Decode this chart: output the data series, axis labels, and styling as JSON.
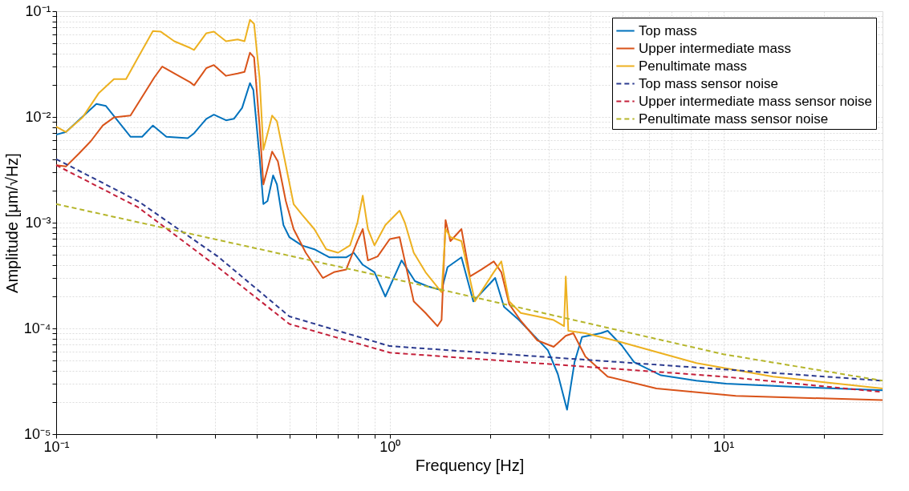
{
  "chart_data": {
    "type": "line",
    "xlabel": "Frequency [Hz]",
    "ylabel": "Amplitude [μm/√Hz]",
    "log": "xy",
    "grid": true,
    "legend": "top right",
    "xlim": [
      0.1,
      30
    ],
    "ylim": [
      1e-05,
      0.1
    ],
    "xticks": [
      {
        "value": 0.1,
        "label": "10⁻¹"
      },
      {
        "value": 0.2,
        "label": null
      },
      {
        "value": 0.3,
        "label": null
      },
      {
        "value": 0.4,
        "label": null
      },
      {
        "value": 0.5,
        "label": null
      },
      {
        "value": 0.6,
        "label": null
      },
      {
        "value": 0.7,
        "label": null
      },
      {
        "value": 0.8,
        "label": null
      },
      {
        "value": 0.9,
        "label": null
      },
      {
        "value": 1,
        "label": "10⁰"
      },
      {
        "value": 2,
        "label": null
      },
      {
        "value": 3,
        "label": null
      },
      {
        "value": 4,
        "label": null
      },
      {
        "value": 5,
        "label": null
      },
      {
        "value": 6,
        "label": null
      },
      {
        "value": 7,
        "label": null
      },
      {
        "value": 8,
        "label": null
      },
      {
        "value": 9,
        "label": null
      },
      {
        "value": 10,
        "label": "10¹"
      },
      {
        "value": 20,
        "label": null
      }
    ],
    "yticks": [
      {
        "value": 1e-05,
        "label": "10⁻⁵"
      },
      {
        "value": 2e-05,
        "label": null
      },
      {
        "value": 3e-05,
        "label": null
      },
      {
        "value": 4e-05,
        "label": null
      },
      {
        "value": 5e-05,
        "label": null
      },
      {
        "value": 6e-05,
        "label": null
      },
      {
        "value": 7e-05,
        "label": null
      },
      {
        "value": 8e-05,
        "label": null
      },
      {
        "value": 9e-05,
        "label": null
      },
      {
        "value": 0.0001,
        "label": "10⁻⁴"
      },
      {
        "value": 0.0002,
        "label": null
      },
      {
        "value": 0.0003,
        "label": null
      },
      {
        "value": 0.0004,
        "label": null
      },
      {
        "value": 0.0005,
        "label": null
      },
      {
        "value": 0.0006,
        "label": null
      },
      {
        "value": 0.0007,
        "label": null
      },
      {
        "value": 0.0008,
        "label": null
      },
      {
        "value": 0.0009,
        "label": null
      },
      {
        "value": 0.001,
        "label": "10⁻³"
      },
      {
        "value": 0.002,
        "label": null
      },
      {
        "value": 0.003,
        "label": null
      },
      {
        "value": 0.004,
        "label": null
      },
      {
        "value": 0.005,
        "label": null
      },
      {
        "value": 0.006,
        "label": null
      },
      {
        "value": 0.007,
        "label": null
      },
      {
        "value": 0.008,
        "label": null
      },
      {
        "value": 0.009,
        "label": null
      },
      {
        "value": 0.01,
        "label": "10⁻²"
      },
      {
        "value": 0.02,
        "label": null
      },
      {
        "value": 0.03,
        "label": null
      },
      {
        "value": 0.04,
        "label": null
      },
      {
        "value": 0.05,
        "label": null
      },
      {
        "value": 0.06,
        "label": null
      },
      {
        "value": 0.07,
        "label": null
      },
      {
        "value": 0.08,
        "label": null
      },
      {
        "value": 0.09,
        "label": null
      },
      {
        "value": 0.1,
        "label": "10⁻¹"
      }
    ],
    "series": [
      {
        "name": "Top mass",
        "color": "#0072bd",
        "line_style": "solid",
        "x": [
          0.1,
          0.107,
          0.132,
          0.141,
          0.167,
          0.181,
          0.195,
          0.214,
          0.248,
          0.259,
          0.282,
          0.297,
          0.323,
          0.341,
          0.361,
          0.381,
          0.39,
          0.407,
          0.418,
          0.43,
          0.447,
          0.459,
          0.48,
          0.5,
          0.545,
          0.594,
          0.66,
          0.74,
          0.78,
          0.83,
          0.9,
          0.97,
          1.085,
          1.19,
          1.3,
          1.43,
          1.49,
          1.64,
          1.78,
          2.07,
          2.2,
          2.44,
          2.73,
          2.98,
          3.19,
          3.4,
          3.58,
          3.77,
          4.29,
          4.5,
          4.96,
          5.4,
          6.5,
          8.3,
          10.2,
          16.4,
          30
        ],
        "values": [
          0.0068,
          0.0072,
          0.0133,
          0.0127,
          0.0065,
          0.0065,
          0.0083,
          0.0065,
          0.0063,
          0.007,
          0.0096,
          0.0105,
          0.0093,
          0.0096,
          0.0122,
          0.0209,
          0.018,
          0.0042,
          0.0015,
          0.0016,
          0.0028,
          0.0023,
          0.00095,
          0.00073,
          0.00061,
          0.00056,
          0.00047,
          0.00047,
          0.00052,
          0.0004,
          0.00034,
          0.0002,
          0.00044,
          0.00028,
          0.00025,
          0.00023,
          0.00038,
          0.00047,
          0.00018,
          0.0003,
          0.00016,
          0.00012,
          8.3e-05,
          6.2e-05,
          3.7e-05,
          1.7e-05,
          4.8e-05,
          8.3e-05,
          9e-05,
          9.5e-05,
          6.9e-05,
          4.8e-05,
          3.6e-05,
          3.2e-05,
          3e-05,
          2.8e-05,
          2.6e-05
        ]
      },
      {
        "name": "Upper intermediate mass",
        "color": "#d95319",
        "line_style": "solid",
        "x": [
          0.1,
          0.107,
          0.117,
          0.127,
          0.138,
          0.149,
          0.167,
          0.197,
          0.208,
          0.226,
          0.252,
          0.259,
          0.282,
          0.297,
          0.323,
          0.35,
          0.367,
          0.381,
          0.392,
          0.407,
          0.418,
          0.444,
          0.462,
          0.488,
          0.515,
          0.56,
          0.63,
          0.68,
          0.74,
          0.8,
          0.83,
          0.86,
          0.92,
          1.0,
          1.07,
          1.18,
          1.28,
          1.39,
          1.43,
          1.47,
          1.52,
          1.64,
          1.74,
          1.88,
          2.05,
          2.16,
          2.28,
          2.47,
          2.77,
          3.1,
          3.37,
          3.55,
          3.86,
          4.5,
          6.3,
          10.9,
          30
        ],
        "values": [
          0.0035,
          0.0034,
          0.0045,
          0.0059,
          0.0083,
          0.0099,
          0.0103,
          0.0237,
          0.03,
          0.0258,
          0.0213,
          0.0199,
          0.029,
          0.031,
          0.0245,
          0.0258,
          0.0267,
          0.0405,
          0.0366,
          0.0083,
          0.0023,
          0.0047,
          0.0038,
          0.0016,
          0.00087,
          0.00052,
          0.0003,
          0.00034,
          0.00036,
          0.00067,
          0.00087,
          0.00044,
          0.00048,
          0.0007,
          0.00073,
          0.00018,
          0.00014,
          0.000105,
          0.00012,
          0.00106,
          0.00067,
          0.00087,
          0.00031,
          0.00036,
          0.00043,
          0.00034,
          0.00017,
          0.000118,
          7.7e-05,
          6.7e-05,
          8.5e-05,
          9e-05,
          5.4e-05,
          3.5e-05,
          2.7e-05,
          2.3e-05,
          2.1e-05
        ]
      },
      {
        "name": "Penultimate mass",
        "color": "#edb120",
        "line_style": "solid",
        "x": [
          0.1,
          0.107,
          0.12,
          0.134,
          0.149,
          0.162,
          0.176,
          0.195,
          0.206,
          0.226,
          0.252,
          0.259,
          0.282,
          0.297,
          0.323,
          0.35,
          0.367,
          0.381,
          0.392,
          0.407,
          0.418,
          0.444,
          0.459,
          0.488,
          0.515,
          0.545,
          0.594,
          0.645,
          0.7,
          0.76,
          0.8,
          0.83,
          0.86,
          0.9,
          0.97,
          1.07,
          1.11,
          1.18,
          1.28,
          1.43,
          1.47,
          1.52,
          1.64,
          1.8,
          2.05,
          2.16,
          2.28,
          2.47,
          2.77,
          3.1,
          3.33,
          3.37,
          3.43,
          3.86,
          4.8,
          8.3,
          14.1,
          30
        ],
        "values": [
          0.0081,
          0.0072,
          0.0099,
          0.0167,
          0.0228,
          0.0228,
          0.0365,
          0.065,
          0.064,
          0.052,
          0.045,
          0.043,
          0.062,
          0.064,
          0.052,
          0.054,
          0.052,
          0.083,
          0.076,
          0.0236,
          0.0049,
          0.0103,
          0.0091,
          0.0035,
          0.0015,
          0.0012,
          0.00087,
          0.00056,
          0.00052,
          0.00061,
          0.001,
          0.0018,
          0.00087,
          0.00061,
          0.00095,
          0.0013,
          0.001,
          0.00052,
          0.00034,
          0.00022,
          0.00087,
          0.00073,
          0.00067,
          0.00018,
          0.00034,
          0.00043,
          0.00018,
          0.00014,
          0.00013,
          0.00012,
          0.000105,
          0.00031,
          9.5e-05,
          9e-05,
          7.6e-05,
          4.7e-05,
          3.5e-05,
          2.7e-05
        ]
      },
      {
        "name": "Top mass sensor noise",
        "color": "#2b3a8f",
        "line_style": "dashed",
        "x": [
          0.1,
          0.176,
          0.305,
          0.5,
          1.0,
          10,
          30
        ],
        "values": [
          0.004,
          0.0016,
          0.00048,
          0.00013,
          6.8e-05,
          4.1e-05,
          3.2e-05
        ]
      },
      {
        "name": "Upper intermediate mass sensor noise",
        "color": "#c4203a",
        "line_style": "dashed",
        "x": [
          0.1,
          0.176,
          0.305,
          0.5,
          1.0,
          10,
          30
        ],
        "values": [
          0.0035,
          0.0014,
          0.00038,
          0.00011,
          5.9e-05,
          3.5e-05,
          2.5e-05
        ]
      },
      {
        "name": "Penultimate mass sensor noise",
        "color": "#b5b52a",
        "line_style": "dashed",
        "x": [
          0.1,
          1.0,
          10,
          30
        ],
        "values": [
          0.0015,
          0.0003,
          5.7e-05,
          3.2e-05
        ]
      }
    ]
  }
}
